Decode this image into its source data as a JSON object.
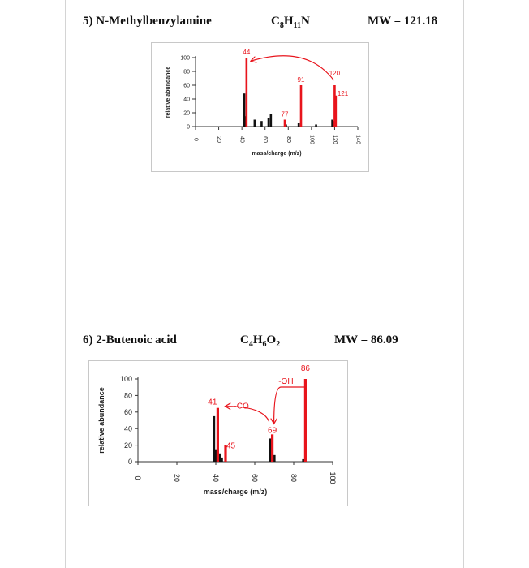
{
  "compounds": [
    {
      "heading": "5) N-Methylbenzylamine",
      "formula_parts": [
        [
          "C",
          ""
        ],
        [
          "8",
          "sub"
        ],
        [
          "H",
          ""
        ],
        [
          "11",
          "sub"
        ],
        [
          "N",
          ""
        ]
      ],
      "mw_text": "MW = 121.18"
    },
    {
      "heading": "6) 2-Butenoic acid",
      "formula_parts": [
        [
          "C",
          ""
        ],
        [
          "4",
          "sub"
        ],
        [
          "H",
          ""
        ],
        [
          "6",
          "sub"
        ],
        [
          "O",
          ""
        ],
        [
          "2",
          "sub"
        ]
      ],
      "mw_text": "MW = 86.09"
    }
  ],
  "colors": {
    "highlight": "#e8141c",
    "bar": "#111111",
    "axis": "#333333"
  },
  "chart_data": [
    {
      "type": "bar",
      "title": "",
      "xlabel": "mass/charge (m/z)",
      "ylabel": "relative abundance",
      "xlim": [
        0,
        140
      ],
      "ylim": [
        0,
        100
      ],
      "xticks": [
        0,
        20,
        40,
        60,
        80,
        100,
        120,
        140
      ],
      "yticks": [
        0,
        20,
        40,
        60,
        80,
        100
      ],
      "series": [
        {
          "color": "#111111",
          "points": [
            [
              42,
              48
            ],
            [
              43,
              15
            ],
            [
              51,
              10
            ],
            [
              57,
              8
            ],
            [
              63,
              12
            ],
            [
              65,
              18
            ],
            [
              78,
              3
            ],
            [
              89,
              5
            ],
            [
              104,
              3
            ],
            [
              118,
              10
            ],
            [
              119,
              8
            ]
          ]
        },
        {
          "color": "#e8141c",
          "points": [
            [
              44,
              100
            ],
            [
              77,
              10
            ],
            [
              91,
              60
            ],
            [
              120,
              60
            ],
            [
              121,
              45
            ]
          ]
        }
      ],
      "peak_labels": [
        {
          "x": 44,
          "label": "44"
        },
        {
          "x": 77,
          "label": "77"
        },
        {
          "x": 91,
          "label": "91"
        },
        {
          "x": 120,
          "label": "120"
        },
        {
          "x": 121,
          "label": "121"
        }
      ],
      "arrows": [
        {
          "from": 120,
          "to": 44,
          "label": ""
        }
      ]
    },
    {
      "type": "bar",
      "title": "",
      "xlabel": "mass/charge (m/z)",
      "ylabel": "relative abundance",
      "xlim": [
        0,
        100
      ],
      "ylim": [
        0,
        100
      ],
      "xticks": [
        0,
        20,
        40,
        60,
        80,
        100
      ],
      "yticks": [
        0,
        20,
        40,
        60,
        80,
        100
      ],
      "series": [
        {
          "color": "#111111",
          "points": [
            [
              39,
              55
            ],
            [
              40,
              15
            ],
            [
              42,
              10
            ],
            [
              43,
              5
            ],
            [
              68,
              28
            ],
            [
              70,
              8
            ],
            [
              85,
              3
            ]
          ]
        },
        {
          "color": "#e8141c",
          "points": [
            [
              41,
              65
            ],
            [
              45,
              20
            ],
            [
              69,
              33
            ],
            [
              86,
              100
            ]
          ]
        }
      ],
      "peak_labels": [
        {
          "x": 41,
          "label": "41"
        },
        {
          "x": 45,
          "label": "45"
        },
        {
          "x": 69,
          "label": "69"
        },
        {
          "x": 86,
          "label": "86"
        }
      ],
      "arrows": [
        {
          "from": 86,
          "to": 69,
          "label": "-OH"
        },
        {
          "from": 69,
          "to": 41,
          "label": "-CO"
        }
      ]
    }
  ]
}
